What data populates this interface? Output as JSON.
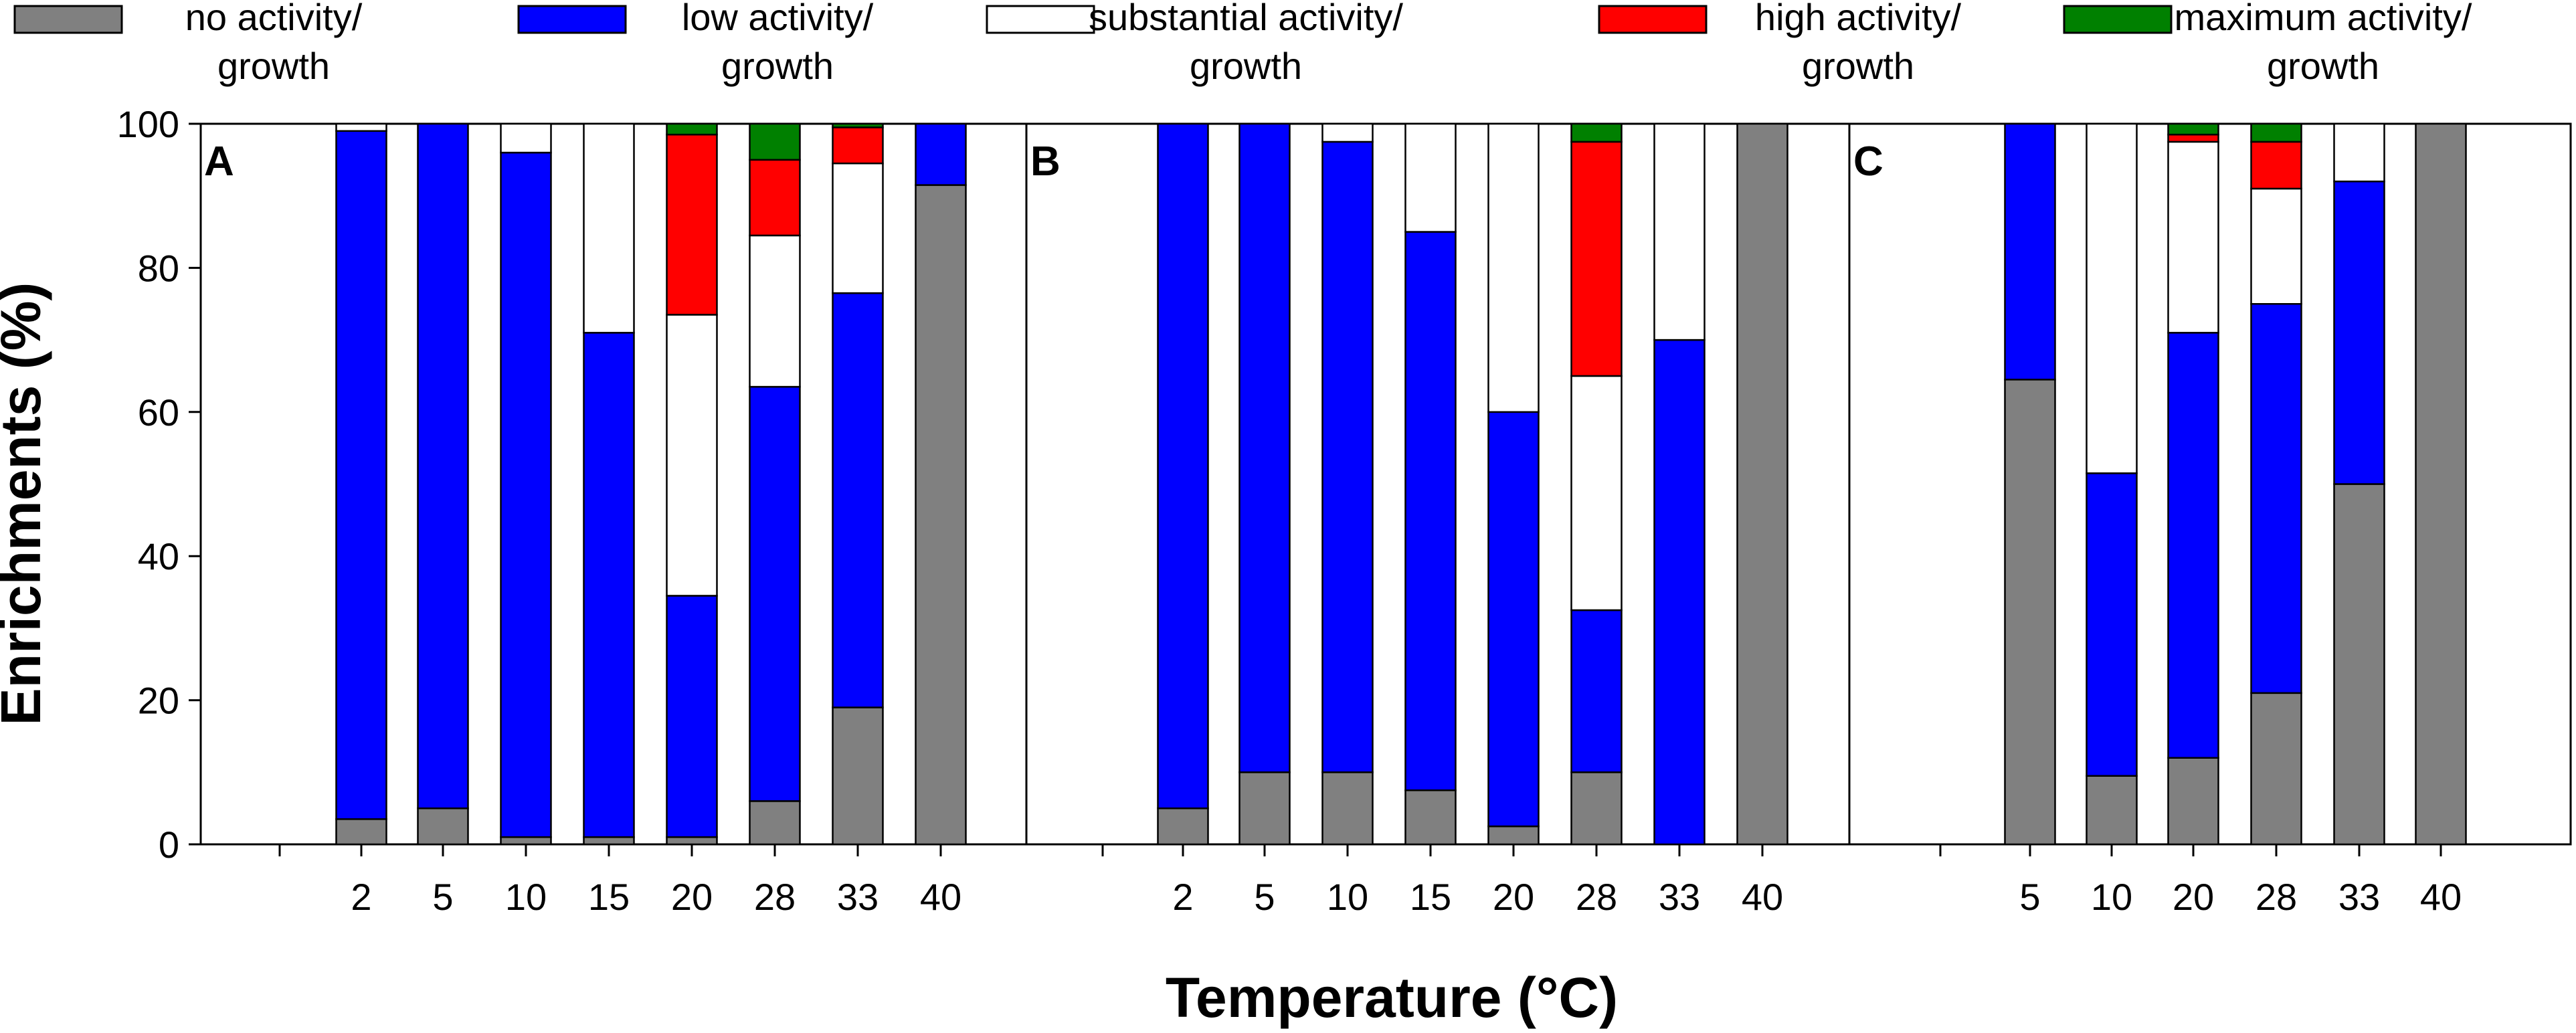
{
  "colors": {
    "no": "#808080",
    "low": "#0000ff",
    "substantial": "#ffffff",
    "high": "#ff0000",
    "max": "#008000"
  },
  "legend": [
    {
      "key": "no",
      "line1": "no activity/",
      "line2": "growth"
    },
    {
      "key": "low",
      "line1": "low activity/",
      "line2": "growth"
    },
    {
      "key": "substantial",
      "line1": "substantial activity/",
      "line2": "growth"
    },
    {
      "key": "high",
      "line1": "high activity/",
      "line2": "growth"
    },
    {
      "key": "max",
      "line1": "maximum activity/",
      "line2": "growth"
    }
  ],
  "chart_data": {
    "type": "bar",
    "stacked": true,
    "title": "",
    "xlabel": "Temperature (°C)",
    "ylabel": "Enrichments (%)",
    "ylim": [
      0,
      100
    ],
    "yticks": [
      0,
      20,
      40,
      60,
      80,
      100
    ],
    "stack_order": [
      "no",
      "low",
      "substantial",
      "high",
      "max"
    ],
    "panels": [
      {
        "label": "A",
        "categories": [
          "2",
          "5",
          "10",
          "15",
          "20",
          "28",
          "33",
          "40"
        ],
        "series": [
          {
            "name": "no activity/growth",
            "key": "no",
            "values": [
              3.5,
              5,
              1,
              1,
              1,
              6,
              19,
              91.5
            ]
          },
          {
            "name": "low activity/growth",
            "key": "low",
            "values": [
              95.5,
              95,
              95,
              70,
              33.5,
              57.5,
              57.5,
              8.5
            ]
          },
          {
            "name": "substantial activity/growth",
            "key": "substantial",
            "values": [
              1,
              0,
              4,
              29,
              39,
              21,
              18,
              0
            ]
          },
          {
            "name": "high activity/growth",
            "key": "high",
            "values": [
              0,
              0,
              0,
              0,
              25,
              10.5,
              5,
              0
            ]
          },
          {
            "name": "maximum activity/growth",
            "key": "max",
            "values": [
              0,
              0,
              0,
              0,
              1.5,
              5,
              0.5,
              0
            ]
          }
        ]
      },
      {
        "label": "B",
        "categories": [
          "2",
          "5",
          "10",
          "15",
          "20",
          "28",
          "33",
          "40"
        ],
        "series": [
          {
            "name": "no activity/growth",
            "key": "no",
            "values": [
              5,
              10,
              10,
              7.5,
              2.5,
              10,
              0,
              100
            ]
          },
          {
            "name": "low activity/growth",
            "key": "low",
            "values": [
              95,
              90,
              87.5,
              77.5,
              57.5,
              22.5,
              70,
              0
            ]
          },
          {
            "name": "substantial activity/growth",
            "key": "substantial",
            "values": [
              0,
              0,
              2.5,
              15,
              40,
              32.5,
              30,
              0
            ]
          },
          {
            "name": "high activity/growth",
            "key": "high",
            "values": [
              0,
              0,
              0,
              0,
              0,
              32.5,
              0,
              0
            ]
          },
          {
            "name": "maximum activity/growth",
            "key": "max",
            "values": [
              0,
              0,
              0,
              0,
              0,
              2.5,
              0,
              0
            ]
          }
        ]
      },
      {
        "label": "C",
        "categories": [
          "5",
          "10",
          "20",
          "28",
          "33",
          "40"
        ],
        "series": [
          {
            "name": "no activity/growth",
            "key": "no",
            "values": [
              64.5,
              9.5,
              12,
              21,
              50,
              100
            ]
          },
          {
            "name": "low activity/growth",
            "key": "low",
            "values": [
              35.5,
              42,
              59,
              54,
              42,
              0
            ]
          },
          {
            "name": "substantial activity/growth",
            "key": "substantial",
            "values": [
              0,
              48.5,
              26.5,
              16,
              8,
              0
            ]
          },
          {
            "name": "high activity/growth",
            "key": "high",
            "values": [
              0,
              0,
              1,
              6.5,
              0,
              0
            ]
          },
          {
            "name": "maximum activity/growth",
            "key": "max",
            "values": [
              0,
              0,
              1.5,
              2.5,
              0,
              0
            ]
          }
        ]
      }
    ]
  }
}
